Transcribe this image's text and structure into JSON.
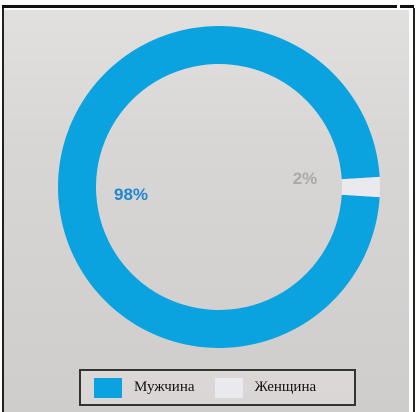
{
  "chart_data": {
    "type": "pie",
    "style": "donut",
    "categories": [
      "Мужчина",
      "Женщина"
    ],
    "values": [
      98,
      2
    ],
    "data_labels": [
      "98%",
      "2%"
    ],
    "colors": [
      "#0aa3e0",
      "#e9e9ee"
    ],
    "label_colors": [
      "#1f86d0",
      "#a9a9a9"
    ],
    "legend_position": "bottom",
    "grid": false
  }
}
